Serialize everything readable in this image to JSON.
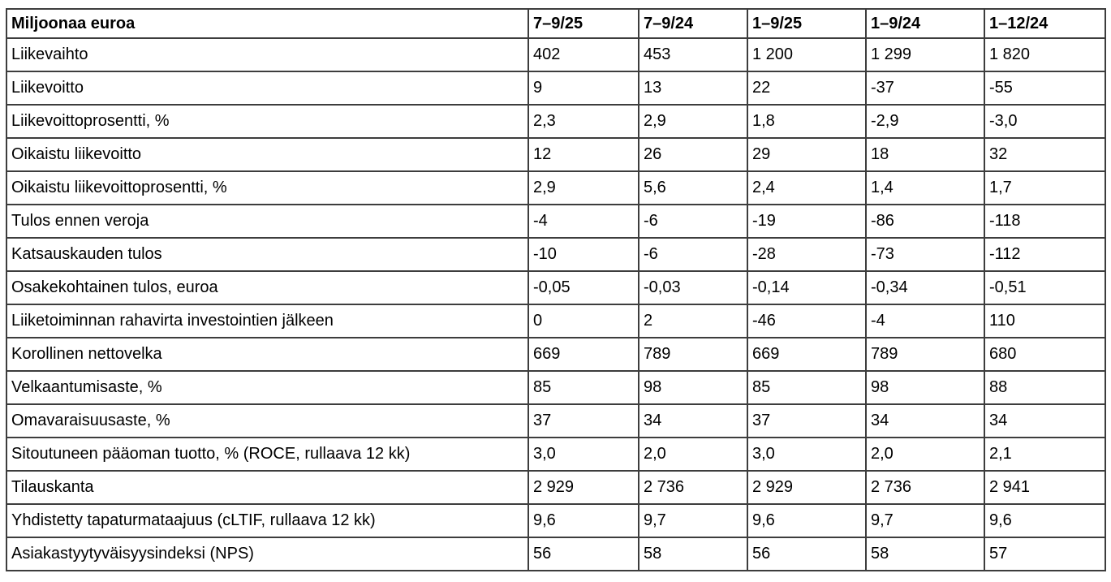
{
  "table": {
    "unit_label": "Miljoonaa euroa",
    "columns": [
      "Miljoonaa euroa",
      "7–9/25",
      "7–9/24",
      "1–9/25",
      "1–9/24",
      "1–12/24"
    ],
    "rows": [
      {
        "label": "Liikevaihto",
        "values": [
          "402",
          "453",
          "1 200",
          "1 299",
          "1 820"
        ]
      },
      {
        "label": "Liikevoitto",
        "values": [
          "9",
          "13",
          "22",
          "-37",
          "-55"
        ]
      },
      {
        "label": "Liikevoittoprosentti, %",
        "values": [
          "2,3",
          "2,9",
          "1,8",
          "-2,9",
          "-3,0"
        ]
      },
      {
        "label": "Oikaistu liikevoitto",
        "values": [
          "12",
          "26",
          "29",
          "18",
          "32"
        ]
      },
      {
        "label": "Oikaistu liikevoittoprosentti, %",
        "values": [
          "2,9",
          "5,6",
          "2,4",
          "1,4",
          "1,7"
        ]
      },
      {
        "label": "Tulos ennen veroja",
        "values": [
          "-4",
          "-6",
          "-19",
          "-86",
          "-118"
        ]
      },
      {
        "label": "Katsauskauden tulos",
        "values": [
          "-10",
          "-6",
          "-28",
          "-73",
          "-112"
        ]
      },
      {
        "label": "Osakekohtainen tulos, euroa",
        "values": [
          "-0,05",
          "-0,03",
          "-0,14",
          "-0,34",
          "-0,51"
        ]
      },
      {
        "label": "Liiketoiminnan rahavirta investointien jälkeen",
        "values": [
          "0",
          "2",
          "-46",
          "-4",
          "110"
        ]
      },
      {
        "label": "Korollinen nettovelka",
        "values": [
          "669",
          "789",
          "669",
          "789",
          "680"
        ]
      },
      {
        "label": "Velkaantumisaste, %",
        "values": [
          "85",
          "98",
          "85",
          "98",
          "88"
        ]
      },
      {
        "label": "Omavaraisuusaste, %",
        "values": [
          "37",
          "34",
          "37",
          "34",
          "34"
        ]
      },
      {
        "label": "Sitoutuneen pääoman tuotto, % (ROCE, rullaava 12 kk)",
        "values": [
          "3,0",
          "2,0",
          "3,0",
          "2,0",
          "2,1"
        ]
      },
      {
        "label": "Tilauskanta",
        "values": [
          "2 929",
          "2 736",
          "2 929",
          "2 736",
          "2 941"
        ]
      },
      {
        "label": "Yhdistetty tapaturmataajuus (cLTIF, rullaava 12 kk)",
        "values": [
          "9,6",
          "9,7",
          "9,6",
          "9,7",
          "9,6"
        ]
      },
      {
        "label": "Asiakastyytyväisyysindeksi (NPS)",
        "values": [
          "56",
          "58",
          "56",
          "58",
          "57"
        ]
      }
    ],
    "colors": {
      "text": "#000000",
      "border": "#3d3d3d",
      "background": "#ffffff"
    }
  }
}
